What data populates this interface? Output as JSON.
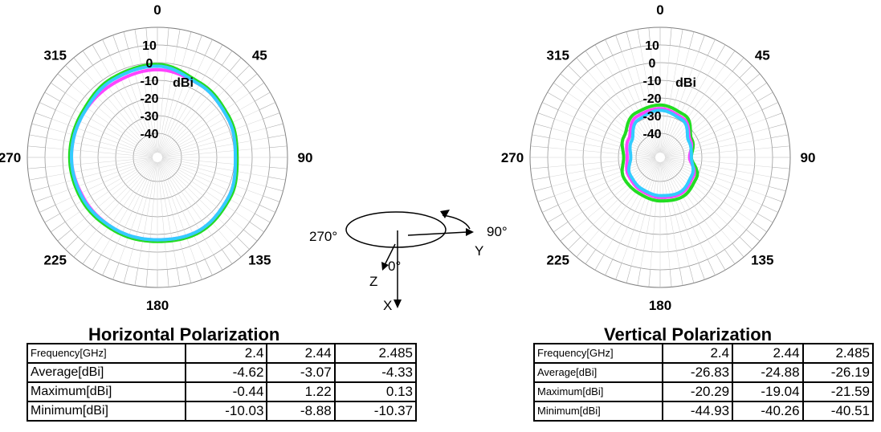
{
  "chart_data": [
    {
      "type": "polar",
      "unit_label": "dBi",
      "radial_ticks": [
        "10",
        "0",
        "-10",
        "-20",
        "-30",
        "-40"
      ],
      "radial_range": [
        -40,
        10
      ],
      "angle_labels": [
        "0",
        "45",
        "90",
        "135",
        "180",
        "225",
        "270",
        "315"
      ],
      "grid": true,
      "series": [
        {
          "color": "#22dd22",
          "angles": [
            0,
            30,
            60,
            90,
            120,
            150,
            180,
            210,
            240,
            270,
            300,
            330
          ],
          "values": [
            -1,
            -5,
            -7,
            -8.5,
            -6.5,
            -5,
            -6,
            -5.5,
            -4.5,
            -4,
            -4,
            -2
          ]
        },
        {
          "color": "#ff44ff",
          "angles": [
            0,
            30,
            60,
            90,
            120,
            150,
            180,
            210,
            240,
            270,
            300,
            330
          ],
          "values": [
            -4,
            -6,
            -8,
            -9.5,
            -7.5,
            -6,
            -7,
            -6.5,
            -6,
            -5,
            -5,
            -5
          ]
        },
        {
          "color": "#33ccff",
          "angles": [
            0,
            30,
            60,
            90,
            120,
            150,
            180,
            210,
            240,
            270,
            300,
            330
          ],
          "values": [
            -2,
            -6,
            -8,
            -9.5,
            -7.5,
            -6,
            -7,
            -6.5,
            -5.5,
            -5,
            -5,
            -3
          ]
        }
      ]
    },
    {
      "type": "polar",
      "unit_label": "dBi",
      "radial_ticks": [
        "10",
        "0",
        "-10",
        "-20",
        "-30",
        "-40"
      ],
      "radial_range": [
        -40,
        10
      ],
      "angle_labels": [
        "0",
        "45",
        "90",
        "135",
        "180",
        "225",
        "270",
        "315"
      ],
      "grid": true,
      "series": [
        {
          "color": "#22dd22",
          "angles": [
            0,
            30,
            60,
            90,
            120,
            150,
            180,
            210,
            240,
            270,
            300,
            330
          ],
          "values": [
            -24,
            -26,
            -33,
            -36,
            -30,
            -28,
            -29,
            -30,
            -30,
            -33,
            -30,
            -25
          ]
        },
        {
          "color": "#ff44ff",
          "angles": [
            0,
            30,
            60,
            90,
            120,
            150,
            180,
            210,
            240,
            270,
            300,
            330
          ],
          "values": [
            -26,
            -28,
            -34,
            -37,
            -32,
            -30,
            -31,
            -32,
            -33,
            -35,
            -33,
            -27
          ]
        },
        {
          "color": "#33ccff",
          "angles": [
            0,
            30,
            60,
            90,
            120,
            150,
            180,
            210,
            240,
            270,
            300,
            330
          ],
          "values": [
            -27,
            -29,
            -35,
            -36,
            -33,
            -31,
            -32,
            -33,
            -34,
            -37,
            -35,
            -29
          ]
        }
      ]
    }
  ],
  "axes_diagram": {
    "label_270": "270°",
    "label_90": "90°",
    "label_0": "0°",
    "label_y": "Y",
    "label_z": "Z",
    "label_x": "X"
  },
  "horizontal": {
    "title": "Horizontal Polarization",
    "header": [
      "Frequency[GHz]",
      "2.4",
      "2.44",
      "2.485"
    ],
    "rows": [
      [
        "Average[dBi]",
        "-4.62",
        "-3.07",
        "-4.33"
      ],
      [
        "Maximum[dBi]",
        "-0.44",
        "1.22",
        "0.13"
      ],
      [
        "Minimum[dBi]",
        "-10.03",
        "-8.88",
        "-10.37"
      ]
    ]
  },
  "vertical": {
    "title": "Vertical Polarization",
    "header": [
      "Frequency[GHz]",
      "2.4",
      "2.44",
      "2.485"
    ],
    "rows": [
      [
        "Average[dBi]",
        "-26.83",
        "-24.88",
        "-26.19"
      ],
      [
        "Maximum[dBi]",
        "-20.29",
        "-19.04",
        "-21.59"
      ],
      [
        "Minimum[dBi]",
        "-44.93",
        "-40.26",
        "-40.51"
      ]
    ]
  }
}
